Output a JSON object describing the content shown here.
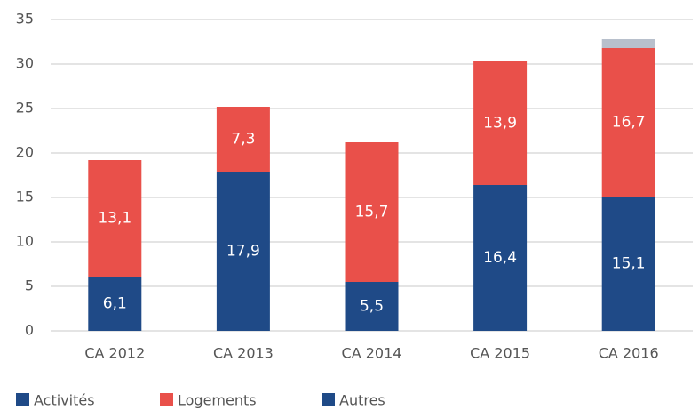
{
  "chart_data": {
    "type": "stacked_bar",
    "categories": [
      "CA 2012",
      "CA 2013",
      "CA 2014",
      "CA 2015",
      "CA 2016"
    ],
    "series": [
      {
        "name": "Activités",
        "color": "#1f4a87",
        "values": [
          6.1,
          17.9,
          5.5,
          16.4,
          15.1
        ],
        "value_labels": [
          "6,1",
          "17,9",
          "5,5",
          "16,4",
          "15,1"
        ]
      },
      {
        "name": "Logements",
        "color": "#e9504a",
        "values": [
          13.1,
          7.3,
          15.7,
          13.9,
          16.7
        ],
        "value_labels": [
          "13,1",
          "7,3",
          "15,7",
          "13,9",
          "16,7"
        ]
      },
      {
        "name": "Autres",
        "color": "#b8c0cc",
        "legend_color": "#1f4a87",
        "values": [
          null,
          null,
          null,
          null,
          1.0
        ]
      }
    ],
    "ylim": [
      0,
      35
    ],
    "yticks": [
      0,
      5,
      10,
      15,
      20,
      25,
      30,
      35
    ],
    "grid": true,
    "legend": "bottom"
  }
}
